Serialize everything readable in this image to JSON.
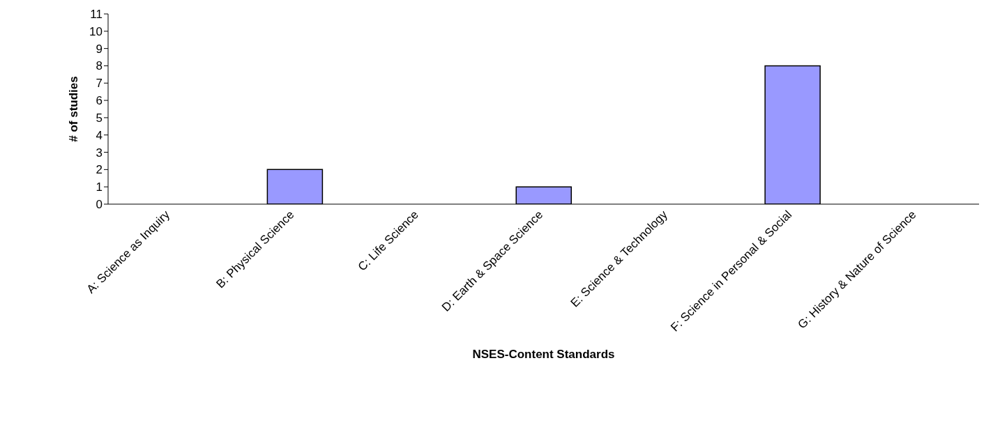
{
  "chart_data": {
    "type": "bar",
    "xlabel": "NSES-Content Standards",
    "ylabel": "# of studies",
    "categories": [
      "A: Science as Inquiry",
      "B: Physical Science",
      "C: Life Science",
      "D: Earth & Space Science",
      "E: Science & Technology",
      "F: Science in Personal & Social",
      "G: History & Nature of Science"
    ],
    "values": [
      0,
      2,
      0,
      1,
      0,
      8,
      0
    ],
    "color": "#9999ff",
    "ylim": [
      0,
      11
    ],
    "yticks": [
      0,
      1,
      2,
      3,
      4,
      5,
      6,
      7,
      8,
      9,
      10,
      11
    ],
    "grid": false,
    "legend": false
  }
}
